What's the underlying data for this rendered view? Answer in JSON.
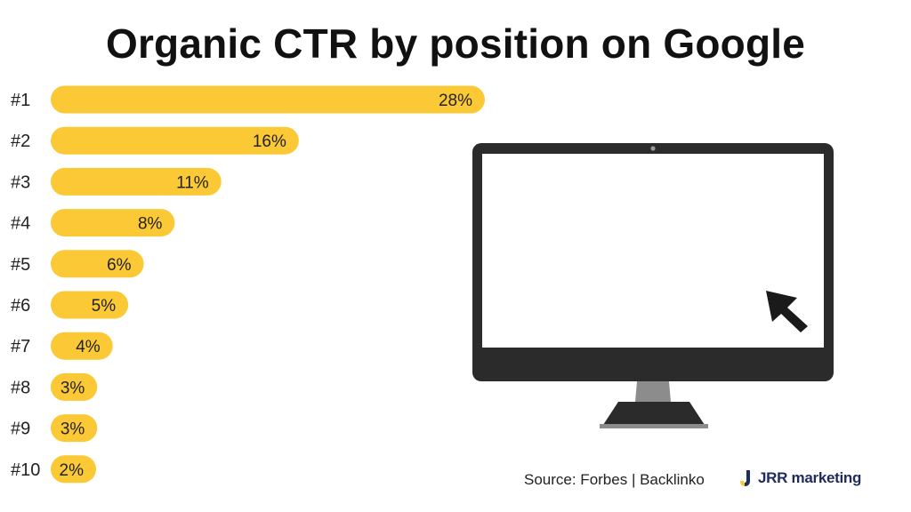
{
  "chart_data": {
    "type": "bar",
    "orientation": "horizontal",
    "title": "Organic CTR by position on Google",
    "categories": [
      "#1",
      "#2",
      "#3",
      "#4",
      "#5",
      "#6",
      "#7",
      "#8",
      "#9",
      "#10"
    ],
    "values": [
      28,
      16,
      11,
      8,
      6,
      5,
      4,
      3,
      3,
      2
    ],
    "value_labels": [
      "28%",
      "16%",
      "11%",
      "8%",
      "6%",
      "5%",
      "4%",
      "3%",
      "3%",
      "2%"
    ],
    "unit": "%",
    "bar_color": "#fbc935",
    "grid": false,
    "legend": "none"
  },
  "footer": {
    "source": "Source: Forbes | Backlinko",
    "brand": "JRR marketing"
  },
  "illustration": {
    "name": "monitor-with-cursor-icon",
    "frame_color": "#2b2b2b",
    "stand_color": "#8c8c8c"
  }
}
